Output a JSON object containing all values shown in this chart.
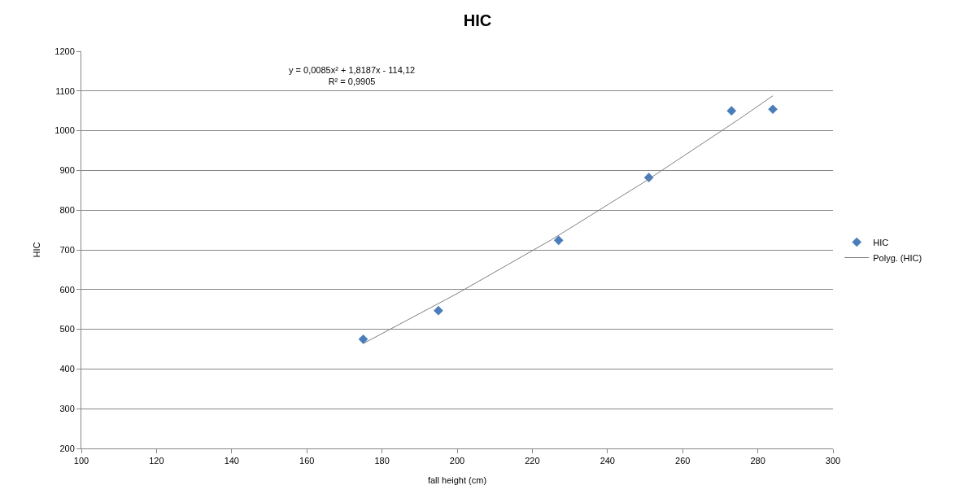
{
  "chart_data": {
    "type": "scatter",
    "title": "HIC",
    "xlabel": "fall height (cm)",
    "ylabel": "HIC",
    "xlim": [
      100,
      300
    ],
    "xticks": [
      100,
      120,
      140,
      160,
      180,
      200,
      220,
      240,
      260,
      280,
      300
    ],
    "ylim": [
      200,
      1200
    ],
    "yticks": [
      200,
      300,
      400,
      500,
      600,
      700,
      800,
      900,
      1000,
      1100,
      1200
    ],
    "grid": "y",
    "legend": "right",
    "marker": "diamond",
    "annotations": [
      "y = 0,0085x² + 1,8187x - 114,12\nR² = 0,9905"
    ],
    "series": [
      {
        "name": "HIC",
        "color": "#4a7ebb",
        "x": [
          175,
          195,
          227,
          251,
          273,
          284
        ],
        "values": [
          475,
          547,
          724,
          882,
          1050,
          1054
        ]
      },
      {
        "name": "Polyg. (HIC)",
        "type": "line",
        "color": "#808080",
        "marker": "none",
        "x": [
          175,
          200,
          225,
          250,
          275,
          284
        ],
        "values": [
          464,
          590,
          725,
          872,
          1029,
          1088
        ]
      }
    ]
  }
}
